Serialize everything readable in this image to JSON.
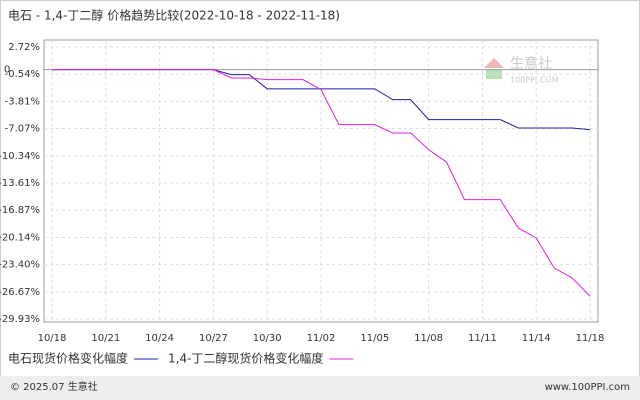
{
  "chart_data": {
    "type": "line",
    "title": "电石 - 1,4-丁二醇 价格趋势比较(2022-10-18 - 2022-11-18)",
    "categories": [
      "10/18",
      null,
      null,
      "10/21",
      null,
      null,
      "10/24",
      null,
      null,
      "10/27",
      null,
      null,
      "10/30",
      null,
      null,
      "11/02",
      null,
      null,
      "11/05",
      null,
      null,
      "11/08",
      null,
      null,
      "11/11",
      null,
      null,
      "11/14",
      null,
      null,
      "11/18"
    ],
    "series": [
      {
        "name": "电石现货价格变化幅度",
        "color": "#1f1fa8",
        "values": [
          0,
          0,
          0,
          0,
          0,
          0,
          0,
          0,
          0,
          0,
          -0.6,
          -0.6,
          -2.3,
          -2.3,
          -2.3,
          -2.3,
          -2.3,
          -2.3,
          -2.3,
          -3.6,
          -3.6,
          -6.0,
          -6.0,
          -6.0,
          -6.0,
          -6.0,
          -7.0,
          -7.0,
          -7.0,
          -7.0,
          -7.2
        ]
      },
      {
        "name": "1,4-丁二醇现货价格变化幅度",
        "color": "#e020e0",
        "values": [
          0,
          0,
          0,
          0,
          0,
          0,
          0,
          0,
          0,
          0,
          -1.0,
          -1.0,
          -1.2,
          -1.2,
          -1.2,
          -2.4,
          -6.6,
          -6.6,
          -6.6,
          -7.6,
          -7.6,
          -9.6,
          -11.1,
          -15.6,
          -15.6,
          -15.6,
          -19.0,
          -20.2,
          -23.8,
          -25.0,
          -27.2
        ]
      }
    ],
    "ylim": [
      -29.93,
      2.72
    ],
    "yticks": [
      {
        "value": 2.72,
        "label": "2.72%"
      },
      0,
      {
        "value": -0.54,
        "label": "-0.54%"
      },
      {
        "value": -3.81,
        "label": "-3.81%"
      },
      {
        "value": -7.07,
        "label": "-7.07%"
      },
      {
        "value": -10.34,
        "label": "-10.34%"
      },
      {
        "value": -13.61,
        "label": "-13.61%"
      },
      {
        "value": -16.87,
        "label": "-16.87%"
      },
      {
        "value": -20.14,
        "label": "-20.14%"
      },
      {
        "value": -23.4,
        "label": "-23.40%"
      },
      {
        "value": -26.67,
        "label": "-26.67%"
      },
      {
        "value": -29.93,
        "label": "-29.93%"
      }
    ],
    "grid": true,
    "watermark": [
      "生意社",
      "100PPI.COM"
    ],
    "copyright": "© 2025.07 生意社",
    "website": "www.100PPI.com"
  }
}
